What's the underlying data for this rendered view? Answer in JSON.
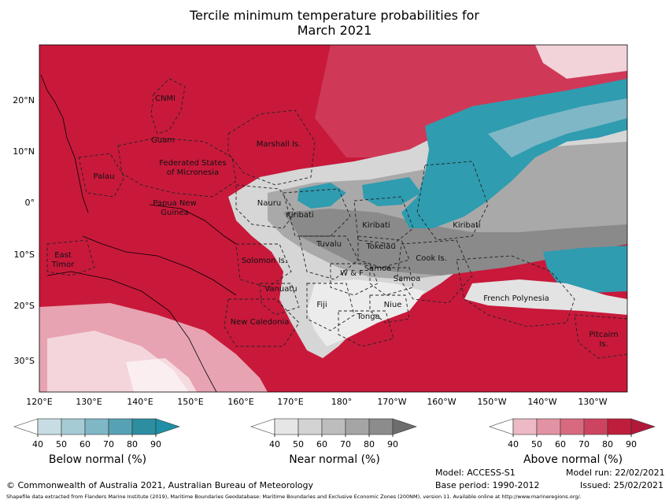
{
  "title": {
    "line1": "Tercile minimum temperature probabilities for",
    "line2": "March 2021"
  },
  "map": {
    "lat_labels": [
      "20°N",
      "10°N",
      "0°",
      "10°S",
      "20°S",
      "30°S"
    ],
    "lon_labels": [
      "120°E",
      "130°E",
      "140°E",
      "150°E",
      "160°E",
      "170°E",
      "180°",
      "170°W",
      "160°W",
      "150°W",
      "140°W",
      "130°W"
    ],
    "regions": [
      "CNMI",
      "Guam",
      "Marshall Is.",
      "Federated States",
      "of Micronesia",
      "Palau",
      "Papua New",
      "Guinea",
      "Nauru",
      "Kiribati",
      "Kiribati",
      "Kiribati",
      "Tuvalu",
      "Tokelau",
      "Solomon Is.",
      "Cook Is.",
      "W & F",
      "Samoa",
      "Samoa",
      "East",
      "Timor",
      "Vanuatu",
      "Fiji",
      "Niue",
      "French Polynesia",
      "Tonga",
      "New Caledonia",
      "Pitcairn",
      "Is."
    ],
    "colors": {
      "above": "#c8193b",
      "near": "#8f8f8f",
      "below": "#2f9cb0"
    }
  },
  "colorbars": {
    "below": {
      "title": "Below normal (%)",
      "ticks": [
        "40",
        "50",
        "60",
        "70",
        "80",
        "90"
      ],
      "colors": [
        "#ffffff",
        "#c7dde3",
        "#a5cbd5",
        "#7fb7c6",
        "#56a2b4",
        "#2d8ea2",
        "#1f8fa7"
      ]
    },
    "near": {
      "title": "Near normal (%)",
      "ticks": [
        "40",
        "50",
        "60",
        "70",
        "80",
        "90"
      ],
      "colors": [
        "#ffffff",
        "#e6e6e6",
        "#d3d3d3",
        "#bdbdbd",
        "#a5a5a5",
        "#8c8c8c",
        "#6e6e6e"
      ]
    },
    "above": {
      "title": "Above normal (%)",
      "ticks": [
        "40",
        "50",
        "60",
        "70",
        "80",
        "90"
      ],
      "colors": [
        "#ffffff",
        "#ecb9c4",
        "#e292a2",
        "#d86a80",
        "#cd4460",
        "#be1e3c",
        "#b2183a"
      ]
    }
  },
  "footer": {
    "copyright": "© Commonwealth of Australia 2021, Australian Bureau of Meteorology",
    "model": "Model: ACCESS-S1",
    "model_run": "Model run: 22/02/2021",
    "base_period": "Base period: 1990-2012",
    "issued": "Issued: 25/02/2021",
    "shapefile": "Shapefile data extracted from Flanders Marine Institute (2019), Maritime Boundaries Geodatabase: Maritime Boundaries and Exclusive Economic Zones (200NM), version 11. Available online at http://www.marineregions.org/."
  }
}
